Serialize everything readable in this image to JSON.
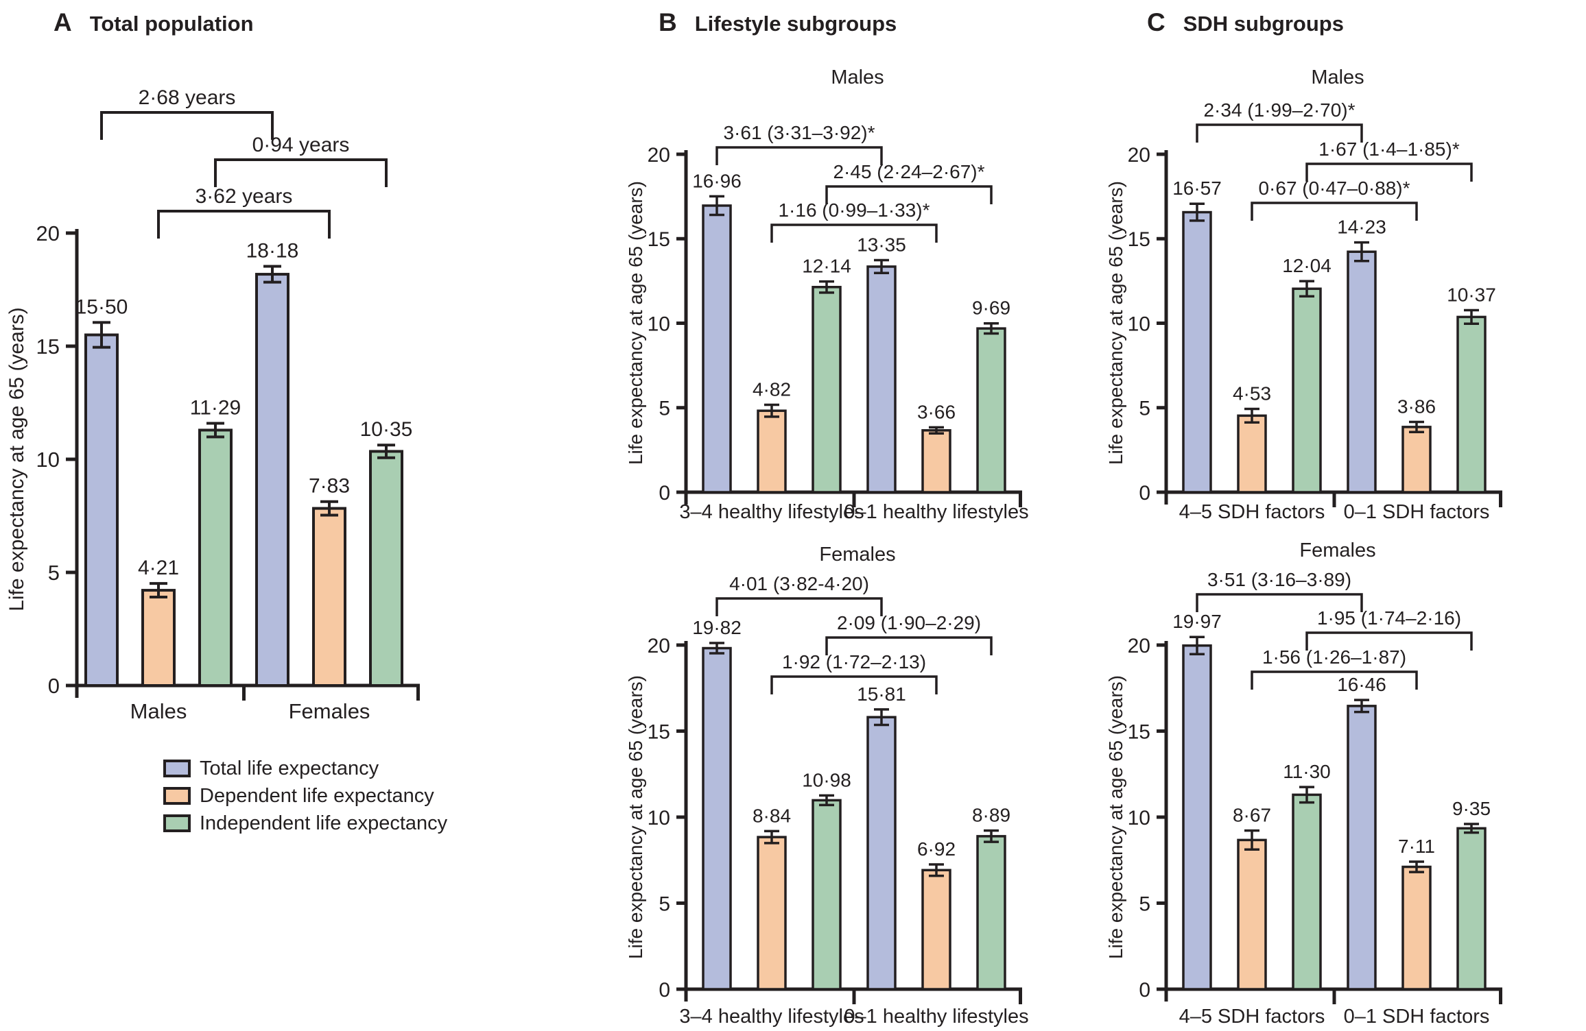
{
  "figure": {
    "panels": [
      {
        "letter": "A",
        "title": "Total population"
      },
      {
        "letter": "B",
        "title": "Lifestyle subgroups"
      },
      {
        "letter": "C",
        "title": "SDH subgroups"
      }
    ],
    "legend": [
      {
        "key": "total",
        "label": "Total life expectancy"
      },
      {
        "key": "dependent",
        "label": "Dependent life expectancy"
      },
      {
        "key": "independent",
        "label": "Independent life expectancy"
      }
    ],
    "colors": {
      "total": "#b4bcdc",
      "dependent": "#f7c9a3",
      "independent": "#a9ceb2",
      "ink": "#231f20",
      "background": "#ffffff"
    }
  },
  "chart_data": [
    {
      "panel": "A",
      "title": "Total population",
      "type": "bar",
      "subtitle": null,
      "ylabel": "Life expectancy at age 65 (years)",
      "ylim": [
        0,
        20
      ],
      "yticks": [
        0,
        5,
        10,
        15,
        20
      ],
      "grid": false,
      "legend_position": "below-left",
      "categories": [
        "Males",
        "Females"
      ],
      "series": [
        {
          "name": "Total life expectancy",
          "color": "total",
          "values": [
            15.5,
            18.18
          ],
          "display": [
            "15·50",
            "18·18"
          ],
          "errors": [
            0.55,
            0.35
          ]
        },
        {
          "name": "Dependent life expectancy",
          "color": "dependent",
          "values": [
            4.21,
            7.83
          ],
          "display": [
            "4·21",
            "7·83"
          ],
          "errors": [
            0.3,
            0.3
          ]
        },
        {
          "name": "Independent life expectancy",
          "color": "independent",
          "values": [
            11.29,
            10.35
          ],
          "display": [
            "11·29",
            "10·35"
          ],
          "errors": [
            0.3,
            0.28
          ]
        }
      ],
      "brackets": [
        {
          "series": 0,
          "label": "2·68 years"
        },
        {
          "series": 2,
          "label": "0·94 years"
        },
        {
          "series": 1,
          "label": "3·62 years"
        }
      ]
    },
    {
      "panel": "B",
      "title": "Lifestyle subgroups",
      "type": "bar",
      "subtitle": "Males",
      "ylabel": "Life expectancy at age 65 (years)",
      "ylim": [
        0,
        20
      ],
      "yticks": [
        0,
        5,
        10,
        15,
        20
      ],
      "grid": false,
      "categories": [
        "3–4 healthy lifestyles",
        "0–1 healthy lifestyles"
      ],
      "series": [
        {
          "name": "Total life expectancy",
          "color": "total",
          "values": [
            16.96,
            13.35
          ],
          "display": [
            "16·96",
            "13·35"
          ],
          "errors": [
            0.55,
            0.38
          ]
        },
        {
          "name": "Dependent life expectancy",
          "color": "dependent",
          "values": [
            4.82,
            3.66
          ],
          "display": [
            "4·82",
            "3·66"
          ],
          "errors": [
            0.35,
            0.18
          ]
        },
        {
          "name": "Independent life expectancy",
          "color": "independent",
          "values": [
            12.14,
            9.69
          ],
          "display": [
            "12·14",
            "9·69"
          ],
          "errors": [
            0.33,
            0.3
          ]
        }
      ],
      "brackets": [
        {
          "series": 0,
          "label": "3·61 (3·31–3·92)*"
        },
        {
          "series": 2,
          "label": "2·45 (2·24–2·67)*"
        },
        {
          "series": 1,
          "label": "1·16 (0·99–1·33)*"
        }
      ]
    },
    {
      "panel": "B",
      "title": "Lifestyle subgroups",
      "type": "bar",
      "subtitle": "Females",
      "ylabel": "Life expectancy at age 65 (years)",
      "ylim": [
        0,
        20
      ],
      "yticks": [
        0,
        5,
        10,
        15,
        20
      ],
      "grid": false,
      "categories": [
        "3–4 healthy lifestyles",
        "0–1 healthy lifestyles"
      ],
      "series": [
        {
          "name": "Total life expectancy",
          "color": "total",
          "values": [
            19.82,
            15.81
          ],
          "display": [
            "19·82",
            "15·81"
          ],
          "errors": [
            0.3,
            0.45
          ]
        },
        {
          "name": "Dependent life expectancy",
          "color": "dependent",
          "values": [
            8.84,
            6.92
          ],
          "display": [
            "8·84",
            "6·92"
          ],
          "errors": [
            0.35,
            0.33
          ]
        },
        {
          "name": "Independent life expectancy",
          "color": "independent",
          "values": [
            10.98,
            8.89
          ],
          "display": [
            "10·98",
            "8·89"
          ],
          "errors": [
            0.28,
            0.33
          ]
        }
      ],
      "brackets": [
        {
          "series": 0,
          "label": "4·01 (3·82-4·20)"
        },
        {
          "series": 2,
          "label": "2·09 (1·90–2·29)"
        },
        {
          "series": 1,
          "label": "1·92 (1·72–2·13)"
        }
      ]
    },
    {
      "panel": "C",
      "title": "SDH subgroups",
      "type": "bar",
      "subtitle": "Males",
      "ylabel": "Life expectancy at age 65 (years)",
      "ylim": [
        0,
        20
      ],
      "yticks": [
        0,
        5,
        10,
        15,
        20
      ],
      "grid": false,
      "categories": [
        "4–5 SDH factors",
        "0–1 SDH factors"
      ],
      "series": [
        {
          "name": "Total life expectancy",
          "color": "total",
          "values": [
            16.57,
            14.23
          ],
          "display": [
            "16·57",
            "14·23"
          ],
          "errors": [
            0.5,
            0.55
          ]
        },
        {
          "name": "Dependent life expectancy",
          "color": "dependent",
          "values": [
            4.53,
            3.86
          ],
          "display": [
            "4·53",
            "3·86"
          ],
          "errors": [
            0.4,
            0.3
          ]
        },
        {
          "name": "Independent life expectancy",
          "color": "independent",
          "values": [
            12.04,
            10.37
          ],
          "display": [
            "12·04",
            "10·37"
          ],
          "errors": [
            0.45,
            0.4
          ]
        }
      ],
      "brackets": [
        {
          "series": 0,
          "label": "2·34 (1·99–2·70)*"
        },
        {
          "series": 2,
          "label": "1·67 (1·4–1·85)*"
        },
        {
          "series": 1,
          "label": "0·67 (0·47–0·88)*"
        }
      ]
    },
    {
      "panel": "C",
      "title": "SDH subgroups",
      "type": "bar",
      "subtitle": "Females",
      "ylabel": "Life expectancy at age 65 (years)",
      "ylim": [
        0,
        20
      ],
      "yticks": [
        0,
        5,
        10,
        15,
        20
      ],
      "grid": false,
      "categories": [
        "4–5 SDH factors",
        "0–1 SDH factors"
      ],
      "series": [
        {
          "name": "Total life expectancy",
          "color": "total",
          "values": [
            19.97,
            16.46
          ],
          "display": [
            "19·97",
            "16·46"
          ],
          "errors": [
            0.5,
            0.35
          ]
        },
        {
          "name": "Dependent life expectancy",
          "color": "dependent",
          "values": [
            8.67,
            7.11
          ],
          "display": [
            "8·67",
            "7·11"
          ],
          "errors": [
            0.55,
            0.3
          ]
        },
        {
          "name": "Independent life expectancy",
          "color": "independent",
          "values": [
            11.3,
            9.35
          ],
          "display": [
            "11·30",
            "9·35"
          ],
          "errors": [
            0.45,
            0.25
          ]
        }
      ],
      "brackets": [
        {
          "series": 0,
          "label": "3·51 (3·16–3·89)"
        },
        {
          "series": 2,
          "label": "1·95 (1·74–2·16)"
        },
        {
          "series": 1,
          "label": "1·56 (1·26–1·87)"
        }
      ]
    }
  ]
}
